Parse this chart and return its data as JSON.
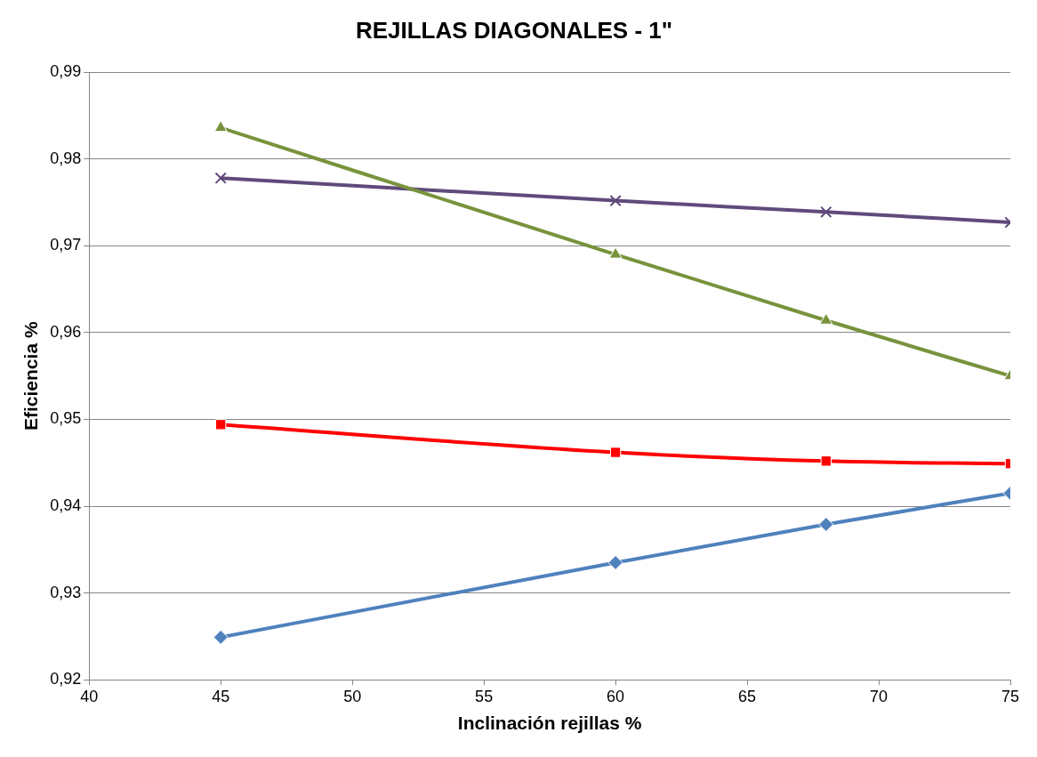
{
  "chart_data": {
    "type": "line",
    "title": "REJILLAS DIAGONALES - 1\"",
    "xlabel": "Inclinación rejillas %",
    "ylabel": "Eficiencia %",
    "x": [
      45,
      60,
      68,
      75
    ],
    "series": [
      {
        "color": "#4f81bd",
        "marker": "diamond",
        "values": [
          0.9249,
          0.9335,
          0.9379,
          0.9415
        ]
      },
      {
        "color": "#ff0000",
        "marker": "square",
        "values": [
          0.9494,
          0.9462,
          0.9452,
          0.9449
        ]
      },
      {
        "color": "#77933c",
        "marker": "triangle",
        "values": [
          0.9836,
          0.969,
          0.9614,
          0.955
        ]
      },
      {
        "color": "#604a7b",
        "marker": "cross",
        "values": [
          0.9778,
          0.9752,
          0.9739,
          0.9727
        ]
      }
    ],
    "xlim": [
      40,
      75
    ],
    "xticks": [
      40,
      45,
      50,
      55,
      60,
      65,
      70,
      75
    ],
    "ylim": [
      0.92,
      0.99
    ],
    "yticks": [
      {
        "value": 0.92,
        "label": "0,92"
      },
      {
        "value": 0.93,
        "label": "0,93"
      },
      {
        "value": 0.94,
        "label": "0,94"
      },
      {
        "value": 0.95,
        "label": "0,95"
      },
      {
        "value": 0.96,
        "label": "0,96"
      },
      {
        "value": 0.97,
        "label": "0,97"
      },
      {
        "value": 0.98,
        "label": "0,98"
      },
      {
        "value": 0.99,
        "label": "0,99"
      }
    ],
    "grid": "y",
    "legend": false,
    "line_style": "solid"
  }
}
